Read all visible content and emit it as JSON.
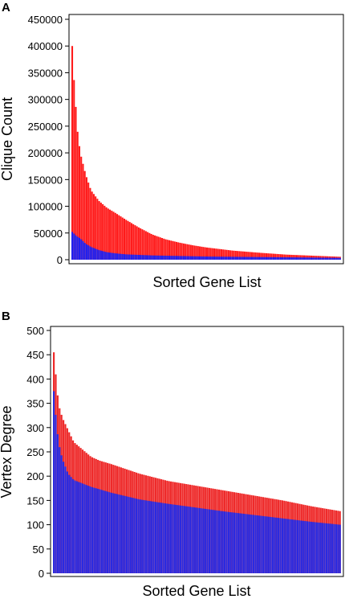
{
  "chart_data": [
    {
      "panel_label": "A",
      "type": "bar",
      "stacked": true,
      "xlabel": "Sorted Gene List",
      "ylabel": "Clique Count",
      "ylim": [
        0,
        450000
      ],
      "yticks": [
        "0",
        "50000",
        "100000",
        "150000",
        "200000",
        "250000",
        "300000",
        "350000",
        "400000",
        "450000"
      ],
      "grid": false,
      "legend": "none",
      "colors": {
        "upper": "#ff1a1a",
        "lower": "#2020ee"
      },
      "profile_note_points": [
        [
          0.0,
          400000,
          52000
        ],
        [
          0.005,
          350000,
          50000
        ],
        [
          0.01,
          310000,
          47000
        ],
        [
          0.02,
          240000,
          43000
        ],
        [
          0.03,
          200000,
          40000
        ],
        [
          0.05,
          160000,
          30000
        ],
        [
          0.07,
          130000,
          24000
        ],
        [
          0.1,
          110000,
          18000
        ],
        [
          0.13,
          97000,
          14000
        ],
        [
          0.16,
          88000,
          12000
        ],
        [
          0.2,
          75000,
          10000
        ],
        [
          0.25,
          60000,
          9000
        ],
        [
          0.3,
          47000,
          8000
        ],
        [
          0.35,
          38000,
          7500
        ],
        [
          0.4,
          32000,
          7000
        ],
        [
          0.45,
          27000,
          6500
        ],
        [
          0.5,
          23000,
          6000
        ],
        [
          0.6,
          17000,
          5500
        ],
        [
          0.7,
          13000,
          5000
        ],
        [
          0.8,
          9500,
          4500
        ],
        [
          0.9,
          7500,
          4000
        ],
        [
          1.0,
          5500,
          3500
        ]
      ],
      "bar_count": 150
    },
    {
      "panel_label": "B",
      "type": "bar",
      "stacked": true,
      "xlabel": "Sorted Gene List",
      "ylabel": "Vertex Degree",
      "ylim": [
        0,
        500
      ],
      "yticks": [
        "0",
        "50",
        "100",
        "150",
        "200",
        "250",
        "300",
        "350",
        "400",
        "450",
        "500"
      ],
      "grid": false,
      "legend": "none",
      "colors": {
        "upper": "#ee2a2a",
        "lower": "#2a2ae0"
      },
      "profile_note_points": [
        [
          0.0,
          455,
          375
        ],
        [
          0.005,
          425,
          340
        ],
        [
          0.01,
          380,
          300
        ],
        [
          0.02,
          340,
          260
        ],
        [
          0.03,
          320,
          235
        ],
        [
          0.05,
          295,
          205
        ],
        [
          0.07,
          270,
          192
        ],
        [
          0.1,
          255,
          185
        ],
        [
          0.13,
          240,
          178
        ],
        [
          0.16,
          232,
          173
        ],
        [
          0.2,
          225,
          166
        ],
        [
          0.3,
          205,
          152
        ],
        [
          0.4,
          190,
          143
        ],
        [
          0.5,
          180,
          135
        ],
        [
          0.6,
          170,
          127
        ],
        [
          0.7,
          160,
          120
        ],
        [
          0.8,
          150,
          113
        ],
        [
          0.9,
          138,
          106
        ],
        [
          1.0,
          128,
          100
        ]
      ],
      "bar_count": 150
    }
  ]
}
